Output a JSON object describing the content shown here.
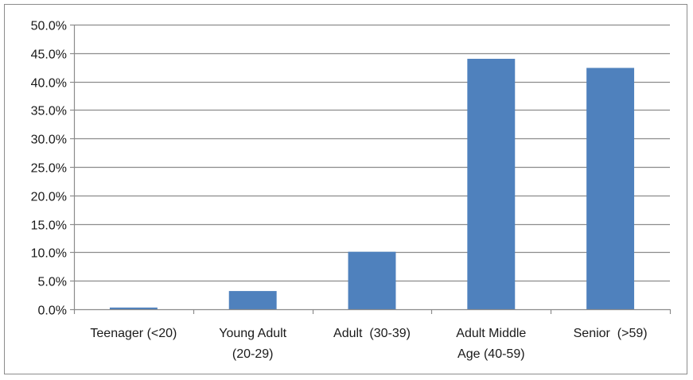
{
  "chart_data": {
    "type": "bar",
    "title": "",
    "xlabel": "",
    "ylabel": "",
    "categories": [
      [
        "Teenager (<20)"
      ],
      [
        "Young Adult",
        "(20-29)"
      ],
      [
        "Adult  (30-39)"
      ],
      [
        "Adult Middle",
        "Age (40-59)"
      ],
      [
        "Senior  (>59)"
      ]
    ],
    "values": [
      0.3,
      3.2,
      10.1,
      44.0,
      42.4
    ],
    "ylim": [
      0,
      50
    ],
    "yticks": [
      0,
      5,
      10,
      15,
      20,
      25,
      30,
      35,
      40,
      45,
      50
    ],
    "ytick_labels": [
      "0.0%",
      "5.0%",
      "10.0%",
      "15.0%",
      "20.0%",
      "25.0%",
      "30.0%",
      "35.0%",
      "40.0%",
      "45.0%",
      "50.0%"
    ],
    "grid": true,
    "legend": "none",
    "colors": {
      "bar": "#4f81bd",
      "grid": "#8c8c8c",
      "axis": "#8c8c8c"
    }
  }
}
